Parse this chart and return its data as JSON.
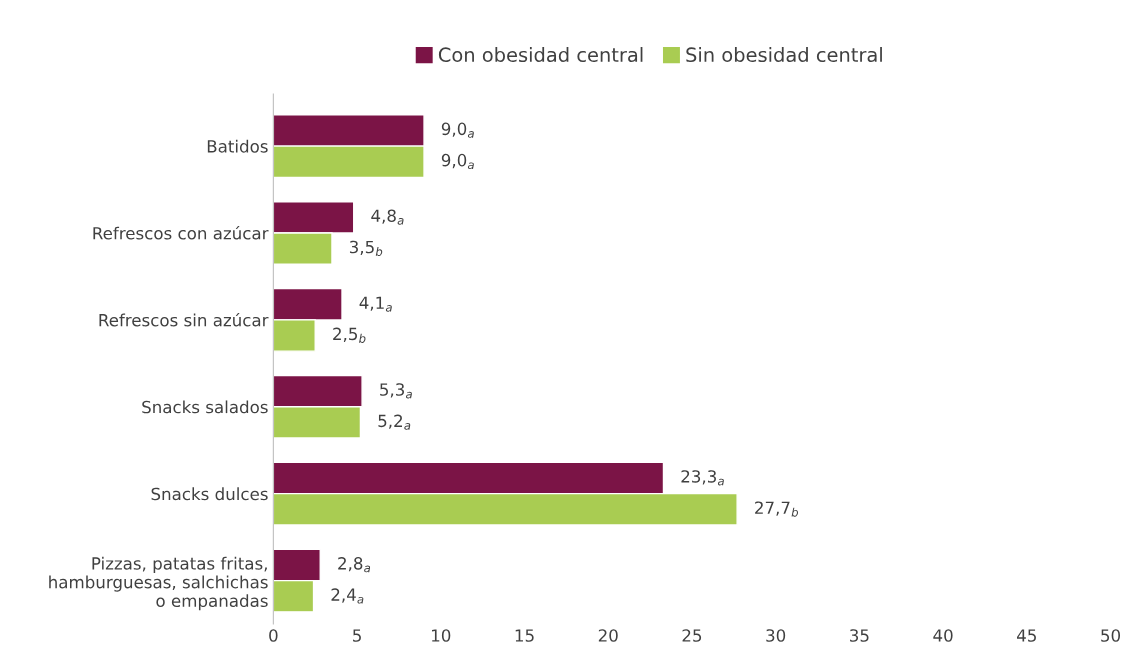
{
  "chart_data": {
    "type": "bar",
    "orientation": "horizontal",
    "categories": [
      "Batidos",
      "Refrescos con azúcar",
      "Refrescos sin azúcar",
      "Snacks salados",
      "Snacks dulces",
      "Pizzas, patatas fritas,\nhamburguesas, salchichas\no empanadas"
    ],
    "series": [
      {
        "name": "Con obesidad central",
        "color": "#7b1446",
        "values": [
          9.0,
          4.8,
          4.1,
          5.3,
          23.3,
          2.8
        ],
        "value_labels": [
          "9,0$_{a}$",
          "4,8$_{a}$",
          "4,1$_{a}$",
          "5,3$_{a}$",
          "23,3$_{a}$",
          "2,8$_{a}$"
        ]
      },
      {
        "name": "Sin obesidad central",
        "color": "#a9cc52",
        "values": [
          9.0,
          3.5,
          2.5,
          5.2,
          27.7,
          2.4
        ],
        "value_labels": [
          "9,0$_{a}$",
          "3,5$_{b}$",
          "2,5$_{b}$",
          "5,2$_{a}$",
          "27,7$_{b}$",
          "2,4$_{a}$"
        ]
      }
    ],
    "xlim": [
      0,
      50
    ],
    "xticks": [
      0,
      5,
      10,
      15,
      20,
      25,
      30,
      35,
      40,
      45,
      50
    ],
    "grid": false,
    "legend": "top"
  }
}
